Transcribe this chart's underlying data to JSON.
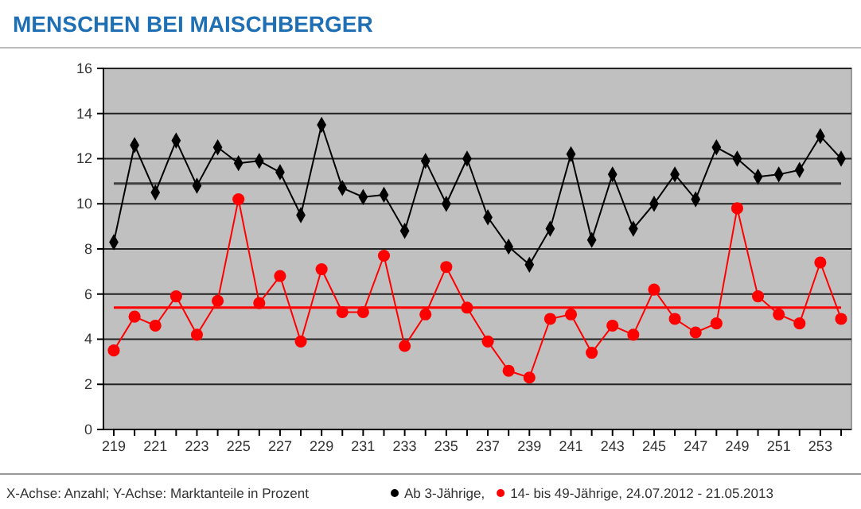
{
  "chart_data": {
    "type": "line",
    "title": "MENSCHEN BEI MAISCHBERGER",
    "categories": [
      "219",
      null,
      "221",
      null,
      "223",
      null,
      "225",
      null,
      "227",
      null,
      "229",
      null,
      "231",
      null,
      "233",
      null,
      "235",
      null,
      "237",
      null,
      "239",
      null,
      "241",
      null,
      "243",
      null,
      "245",
      null,
      "247",
      null,
      "249",
      null,
      "251",
      null,
      "253",
      null
    ],
    "series": [
      {
        "name": "Ab 3-Jährige,",
        "color": "#000000",
        "marker": "diamond",
        "values": [
          8.3,
          12.6,
          10.5,
          12.8,
          10.8,
          12.5,
          11.8,
          11.9,
          11.4,
          9.5,
          13.5,
          10.7,
          10.3,
          10.4,
          8.8,
          11.9,
          10.0,
          12.0,
          9.4,
          8.1,
          7.3,
          8.9,
          12.2,
          8.4,
          11.3,
          8.9,
          10.0,
          11.3,
          10.2,
          12.5,
          12.0,
          11.2,
          11.3,
          11.5,
          13.0,
          12.0
        ]
      },
      {
        "name": "14- bis 49-Jährige, 24.07.2012 - 21.05.2013",
        "color": "#ff0000",
        "marker": "circle",
        "values": [
          3.5,
          5.0,
          4.6,
          5.9,
          4.2,
          5.7,
          10.2,
          5.6,
          6.8,
          3.9,
          7.1,
          5.2,
          5.2,
          7.7,
          3.7,
          5.1,
          7.2,
          5.4,
          3.9,
          2.6,
          2.3,
          4.9,
          5.1,
          3.4,
          4.6,
          4.2,
          6.2,
          4.9,
          4.3,
          4.7,
          9.8,
          5.9,
          5.1,
          4.7,
          7.4,
          4.9
        ]
      }
    ],
    "ref_lines": [
      {
        "axis": "y",
        "value": 10.9,
        "color": "#404040"
      },
      {
        "axis": "y",
        "value": 5.4,
        "color": "#ff0000"
      }
    ],
    "ylim": [
      0,
      16
    ],
    "yticks": [
      0,
      2,
      4,
      6,
      8,
      10,
      12,
      14,
      16
    ],
    "grid": "y",
    "legend": "bottom",
    "line_style": "solid",
    "annotations": [
      "X-Achse: Anzahl; Y-Achse: Marktanteile in Prozent"
    ]
  }
}
